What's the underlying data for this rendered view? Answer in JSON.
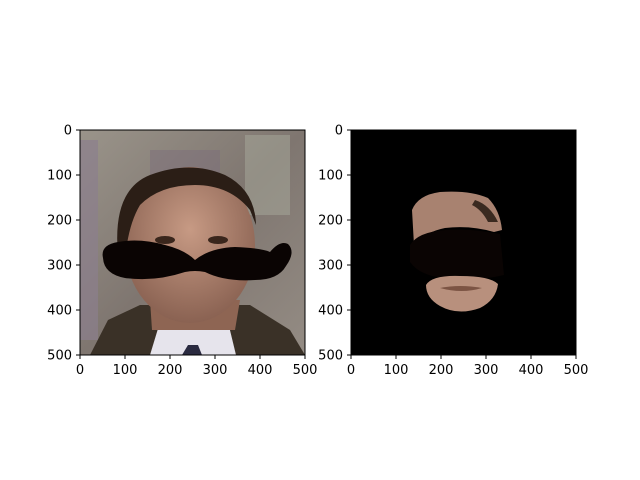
{
  "chart_data": [
    {
      "type": "image",
      "content": "face with mustache overlay",
      "xlim": [
        0,
        500
      ],
      "ylim": [
        500,
        0
      ],
      "xticks": [
        0,
        100,
        200,
        300,
        400,
        500
      ],
      "yticks": [
        0,
        100,
        200,
        300,
        400,
        500
      ],
      "xtick_labels": [
        "0",
        "100",
        "200",
        "300",
        "400",
        "500"
      ],
      "ytick_labels": [
        "0",
        "100",
        "200",
        "300",
        "400",
        "500"
      ],
      "title": "",
      "xlabel": "",
      "ylabel": ""
    },
    {
      "type": "image",
      "content": "masked face region with mustache on black background",
      "xlim": [
        0,
        500
      ],
      "ylim": [
        500,
        0
      ],
      "xticks": [
        0,
        100,
        200,
        300,
        400,
        500
      ],
      "yticks": [
        0,
        100,
        200,
        300,
        400,
        500
      ],
      "xtick_labels": [
        "0",
        "100",
        "200",
        "300",
        "400",
        "500"
      ],
      "ytick_labels": [
        "0",
        "100",
        "200",
        "300",
        "400",
        "500"
      ],
      "title": "",
      "xlabel": "",
      "ylabel": ""
    }
  ],
  "colors": {
    "background_left": "#8a8279",
    "suit": "#3b3328",
    "skin": "#b08874",
    "hair": "#2b1e16",
    "mustache": "#0a0403",
    "background_right": "#000000"
  },
  "icons": [
    "mustache-overlay"
  ]
}
